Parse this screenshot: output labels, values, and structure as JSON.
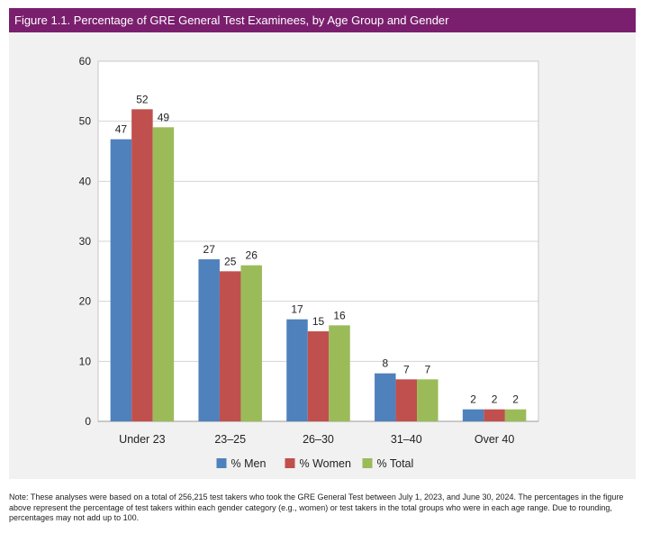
{
  "figure_title": "Figure 1.1. Percentage of GRE General Test Examinees, by Age Group and Gender",
  "note": "Note: These analyses were based on a total of 256,215 test takers who took the GRE General Test between July 1, 2023, and June 30, 2024. The percentages in the figure above represent the percentage of test takers within each gender category (e.g., women) or test takers in the total groups who were in each age range. Due to rounding, percentages may not add up to 100.",
  "chart_data": {
    "type": "bar",
    "title": "Figure 1.1. Percentage of GRE General Test Examinees, by Age Group and Gender",
    "categories": [
      "Under 23",
      "23–25",
      "26–30",
      "31–40",
      "Over 40"
    ],
    "series": [
      {
        "name": "% Men",
        "values": [
          47,
          27,
          17,
          8,
          2
        ],
        "color": "#4f81bd"
      },
      {
        "name": "% Women",
        "values": [
          52,
          25,
          15,
          7,
          2
        ],
        "color": "#c0504d"
      },
      {
        "name": "% Total",
        "values": [
          49,
          26,
          16,
          7,
          2
        ],
        "color": "#9bbb59"
      }
    ],
    "ylim": [
      0,
      60
    ],
    "yticks": [
      "0",
      "10",
      "20",
      "30",
      "40",
      "50",
      "60"
    ],
    "grid": true,
    "legend_position": "bottom",
    "data_labels": true
  }
}
